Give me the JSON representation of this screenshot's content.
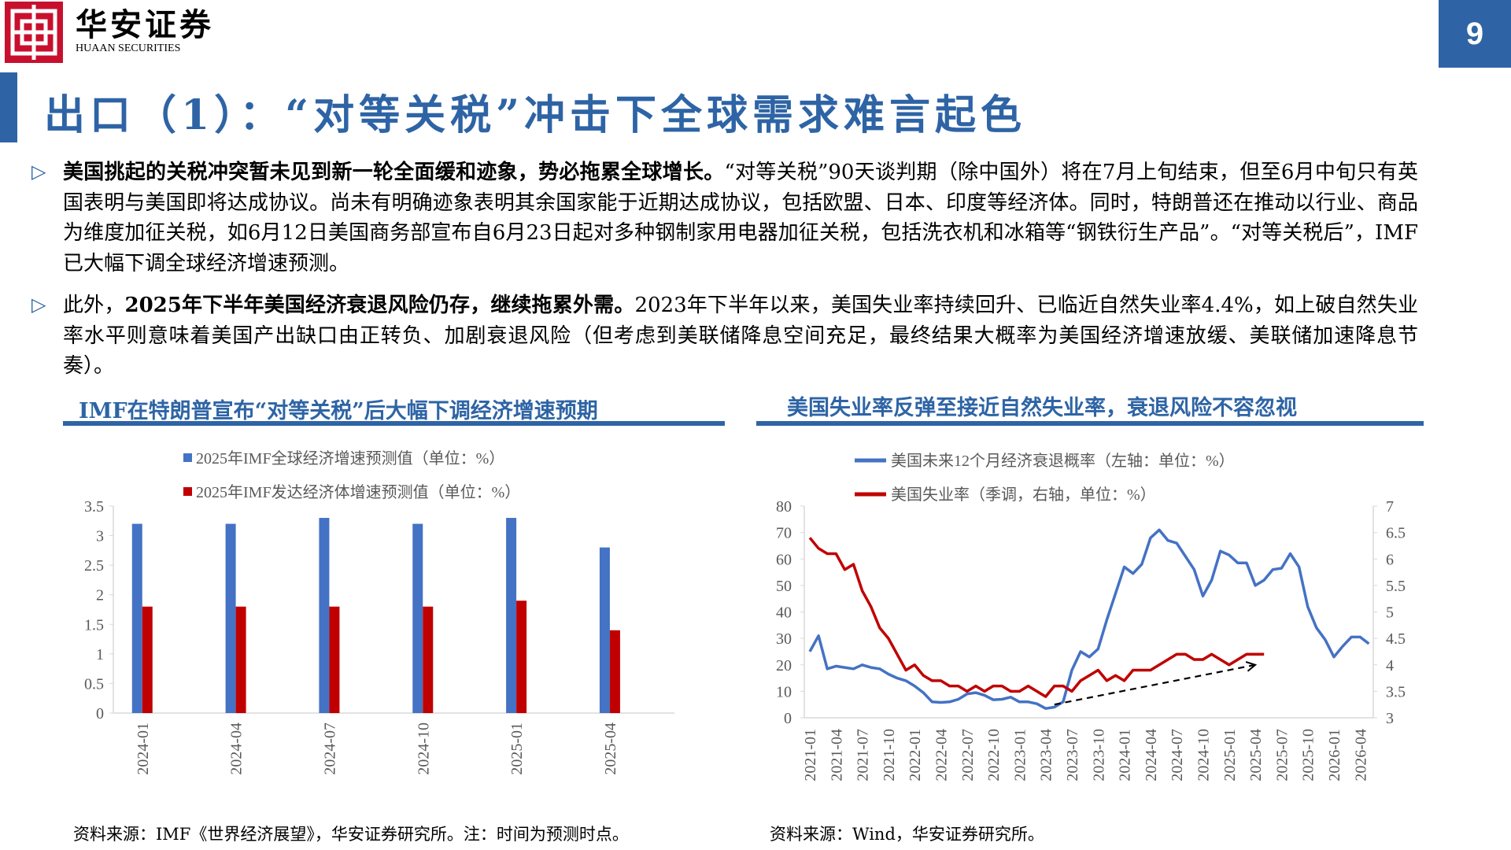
{
  "header": {
    "logo_cn": "华安证券",
    "logo_en": "HUAAN SECURITIES",
    "page_number": "9",
    "title": "出口（1）：“对等关税”冲击下全球需求难言起色",
    "brand_color": "#2E64A5",
    "logo_color": "#C8102E"
  },
  "body": {
    "bullet_icon": "triangle-right-outline-icon",
    "p1_bold": "美国挑起的关税冲突暂未见到新一轮全面缓和迹象，势必拖累全球增长。",
    "p1_rest": "“对等关税”90天谈判期（除中国外）将在7月上旬结束，但至6月中旬只有英国表明与美国即将达成协议。尚未有明确迹象表明其余国家能于近期达成协议，包括欧盟、日本、印度等经济体。同时，特朗普还在推动以行业、商品为维度加征关税，如6月12日美国商务部宣布自6月23日起对多种钢制家用电器加征关税，包括洗衣机和冰箱等“钢铁衍生产品”。“对等关税后”，IMF已大幅下调全球经济增速预测。",
    "p2_pre": "此外，",
    "p2_bold": "2025年下半年美国经济衰退风险仍存，继续拖累外需。",
    "p2_rest": "2023年下半年以来，美国失业率持续回升、已临近自然失业率4.4%，如上破自然失业率水平则意味着美国产出缺口由正转负、加剧衰退风险（但考虑到美联储降息空间充足，最终结果大概率为美国经济增速放缓、美联储加速降息节奏）。"
  },
  "left_chart_title": "IMF在特朗普宣布“对等关税”后大幅下调经济增速预期",
  "right_chart_title": "美国失业率反弹至接近自然失业率，衰退风险不容忽视",
  "left_source": "资料来源：IMF《世界经济展望》，华安证券研究所。注：时间为预测时点。",
  "right_source": "资料来源：Wind，华安证券研究所。",
  "chart_data": [
    {
      "type": "bar",
      "categories": [
        "2024-01",
        "2024-04",
        "2024-07",
        "2024-10",
        "2025-01",
        "2025-04"
      ],
      "series": [
        {
          "name": "2025年IMF全球经济增速预测值（单位：%）",
          "values": [
            3.2,
            3.2,
            3.3,
            3.2,
            3.3,
            2.8
          ],
          "color": "#4472C4"
        },
        {
          "name": "2025年IMF发达经济体增速预测值（单位：%）",
          "values": [
            1.8,
            1.8,
            1.8,
            1.8,
            1.9,
            1.4
          ],
          "color": "#C00000"
        }
      ],
      "ylim": [
        0,
        3.5
      ],
      "yticks": [
        "0",
        "0.5",
        "1",
        "1.5",
        "2",
        "2.5",
        "3",
        "3.5"
      ],
      "legend": "top",
      "grid": false
    },
    {
      "type": "line",
      "x_start": "2021-01",
      "xticks": [
        "2021-01",
        "2021-04",
        "2021-07",
        "2021-10",
        "2022-01",
        "2022-04",
        "2022-07",
        "2022-10",
        "2023-01",
        "2023-04",
        "2023-07",
        "2023-10",
        "2024-01",
        "2024-04",
        "2024-07",
        "2024-10",
        "2025-01",
        "2025-04",
        "2025-07",
        "2025-10",
        "2026-01",
        "2026-04"
      ],
      "series": [
        {
          "name": "美国未来12个月经济衰退概率（左轴：单位：%）",
          "axis": "left",
          "color": "#4472C4",
          "values": [
            25,
            31,
            18.5,
            19.5,
            19,
            18.5,
            20,
            19,
            18.5,
            16.5,
            15,
            14,
            12,
            9.5,
            6,
            5.8,
            6,
            7,
            9,
            9.5,
            8.5,
            6.8,
            7,
            7.8,
            6,
            6,
            5.3,
            3.5,
            4,
            6,
            18,
            25,
            23,
            26,
            37,
            47,
            57,
            54.5,
            58,
            68,
            71,
            67,
            66,
            61,
            56,
            46,
            52,
            63,
            61.5,
            58.5,
            58.5,
            50,
            52,
            56,
            56.5,
            62,
            57,
            42,
            34,
            29.5,
            23,
            27,
            30.5,
            30.5,
            28
          ]
        },
        {
          "name": "美国失业率（季调，右轴，单位：%）",
          "axis": "right",
          "color": "#C00000",
          "values": [
            6.4,
            6.2,
            6.1,
            6.1,
            5.8,
            5.9,
            5.4,
            5.1,
            4.7,
            4.5,
            4.2,
            3.9,
            4.0,
            3.8,
            3.7,
            3.7,
            3.6,
            3.6,
            3.5,
            3.6,
            3.5,
            3.6,
            3.6,
            3.5,
            3.5,
            3.6,
            3.5,
            3.4,
            3.6,
            3.6,
            3.5,
            3.7,
            3.8,
            3.9,
            3.7,
            3.8,
            3.7,
            3.9,
            3.9,
            3.9,
            4.0,
            4.1,
            4.2,
            4.2,
            4.1,
            4.1,
            4.2,
            4.1,
            4.0,
            4.1,
            4.2,
            4.2,
            4.2
          ]
        }
      ],
      "ylim_left": [
        0,
        80
      ],
      "yticks_left": [
        "0",
        "10",
        "20",
        "30",
        "40",
        "50",
        "60",
        "70",
        "80"
      ],
      "ylim_right": [
        3,
        7
      ],
      "yticks_right": [
        "3",
        "3.5",
        "4",
        "4.5",
        "5",
        "5.5",
        "6",
        "6.5",
        "7"
      ],
      "trend_arrow": {
        "from": [
          "2023-05",
          5
        ],
        "to": [
          "2025-04",
          20
        ],
        "style": "dashed"
      },
      "legend": "top",
      "grid": false
    }
  ]
}
